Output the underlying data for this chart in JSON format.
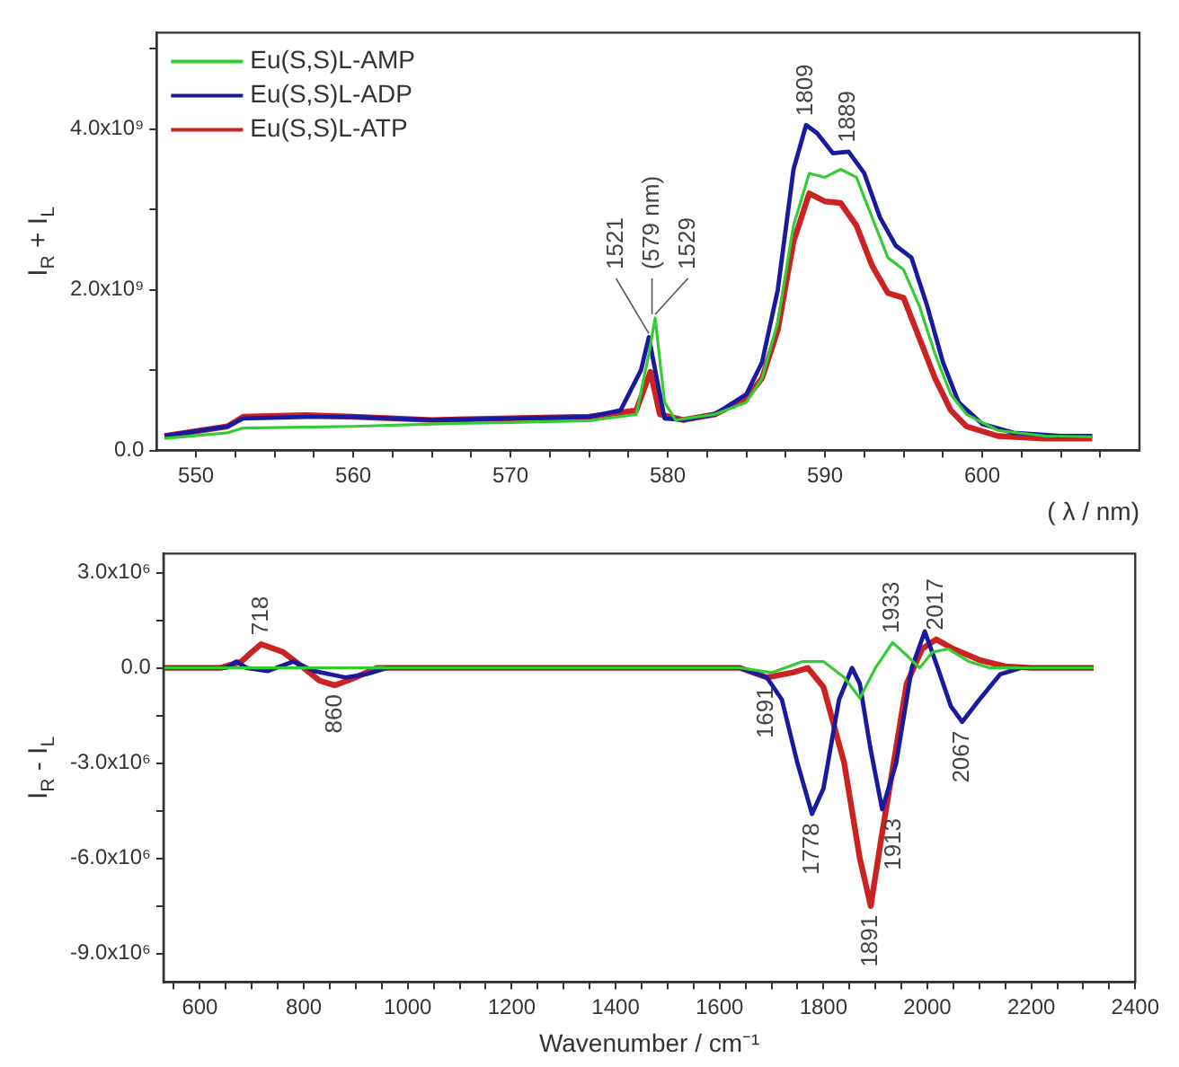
{
  "chart_data": [
    {
      "type": "line",
      "xlabel": "( λ / nm)",
      "ylabel": "I$_{R}$ + I$_{L}$",
      "legend": "top left",
      "grid": false,
      "xlim": [
        547.5,
        610
      ],
      "xticks": [
        550,
        {
          "value": 552.5,
          "label": null
        },
        {
          "value": 555,
          "label": null
        },
        {
          "value": 557.5,
          "label": null
        },
        560,
        {
          "value": 562.5,
          "label": null
        },
        {
          "value": 565,
          "label": null
        },
        {
          "value": 567.5,
          "label": null
        },
        570,
        {
          "value": 572.5,
          "label": null
        },
        {
          "value": 575,
          "label": null
        },
        {
          "value": 577.5,
          "label": null
        },
        580,
        {
          "value": 582.5,
          "label": null
        },
        {
          "value": 585,
          "label": null
        },
        {
          "value": 587.5,
          "label": null
        },
        590,
        {
          "value": 592.5,
          "label": null
        },
        {
          "value": 595,
          "label": null
        },
        {
          "value": 597.5,
          "label": null
        },
        600,
        {
          "value": 602.5,
          "label": null
        },
        {
          "value": 605,
          "label": null
        },
        {
          "value": 607.5,
          "label": null
        }
      ],
      "ylim": [
        0,
        5200000000
      ],
      "yticks": [
        {
          "value": 0,
          "label": "0.0"
        },
        {
          "value": 1000000000,
          "label": null
        },
        {
          "value": 2000000000,
          "label": "2.0x10⁹"
        },
        {
          "value": 3000000000,
          "label": null
        },
        {
          "value": 4000000000,
          "label": "4.0x10⁹"
        },
        {
          "value": 5000000000,
          "label": null
        }
      ],
      "series": [
        {
          "name": "Eu(S,S)L-AMP",
          "color": "#33cc33",
          "x": [
            548,
            552,
            553,
            560,
            565,
            570,
            575,
            578,
            578.8,
            579.2,
            579.8,
            580.5,
            583,
            585,
            586,
            587,
            588,
            589,
            590,
            591,
            592,
            593,
            594,
            595,
            596,
            597,
            598,
            599,
            601,
            604,
            607
          ],
          "values": [
            150000000,
            220000000,
            280000000,
            300000000,
            330000000,
            350000000,
            370000000,
            450000000,
            1200000000,
            1650000000,
            600000000,
            380000000,
            450000000,
            600000000,
            900000000,
            1600000000,
            2800000000,
            3450000000,
            3400000000,
            3500000000,
            3400000000,
            2900000000,
            2400000000,
            2250000000,
            1800000000,
            1200000000,
            700000000,
            450000000,
            250000000,
            180000000,
            170000000
          ]
        },
        {
          "name": "Eu(S,S)L-ADP",
          "color": "#1a1aa0",
          "x": [
            548,
            552,
            553,
            557,
            560,
            565,
            570,
            575,
            577,
            578.3,
            578.8,
            579.3,
            579.8,
            581,
            583,
            585,
            586,
            587,
            588,
            588.8,
            589.5,
            590.5,
            591.5,
            592.5,
            593.5,
            594.5,
            595.5,
            596.5,
            597.5,
            598.5,
            600,
            602,
            605,
            607
          ],
          "values": [
            180000000,
            300000000,
            400000000,
            420000000,
            420000000,
            380000000,
            400000000,
            420000000,
            500000000,
            1000000000,
            1410000000,
            900000000,
            400000000,
            380000000,
            450000000,
            700000000,
            1100000000,
            2000000000,
            3500000000,
            4050000000,
            3950000000,
            3700000000,
            3720000000,
            3450000000,
            2900000000,
            2550000000,
            2400000000,
            1800000000,
            1100000000,
            600000000,
            330000000,
            220000000,
            180000000,
            180000000
          ]
        },
        {
          "name": "Eu(S,S)L-ATP",
          "color": "#cc2222",
          "x": [
            548,
            552,
            553,
            557,
            560,
            565,
            570,
            575,
            578,
            578.9,
            579.5,
            581,
            583,
            584,
            585,
            586,
            587,
            588,
            589,
            590,
            591,
            592,
            593,
            594,
            595,
            596,
            597,
            598,
            599,
            601,
            604,
            607
          ],
          "values": [
            180000000,
            300000000,
            420000000,
            440000000,
            420000000,
            380000000,
            400000000,
            420000000,
            500000000,
            980000000,
            450000000,
            380000000,
            450000000,
            550000000,
            650000000,
            900000000,
            1500000000,
            2600000000,
            3200000000,
            3100000000,
            3080000000,
            2800000000,
            2300000000,
            1960000000,
            1900000000,
            1400000000,
            900000000,
            500000000,
            300000000,
            180000000,
            150000000,
            150000000
          ]
        }
      ],
      "annotations": [
        {
          "text": "1521",
          "x": 578.8,
          "y": 1410000000
        },
        {
          "text": "(579 nm)",
          "x": 579,
          "y": 1650000000
        },
        {
          "text": "1529",
          "x": 579.2,
          "y": 1650000000
        },
        {
          "text": "1809",
          "x": 588.8,
          "y": 4050000000
        },
        {
          "text": "1889",
          "x": 591.5,
          "y": 3720000000
        }
      ]
    },
    {
      "type": "line",
      "xlabel": "Wavenumber / cm⁻¹",
      "ylabel": "I$_{R}$ - I$_{L}$",
      "grid": false,
      "xlim": [
        530,
        2400
      ],
      "xticks": [
        {
          "value": 550,
          "label": null
        },
        600,
        {
          "value": 650,
          "label": null
        },
        {
          "value": 700,
          "label": null
        },
        {
          "value": 750,
          "label": null
        },
        800,
        {
          "value": 850,
          "label": null
        },
        {
          "value": 900,
          "label": null
        },
        {
          "value": 950,
          "label": null
        },
        1000,
        {
          "value": 1050,
          "label": null
        },
        {
          "value": 1100,
          "label": null
        },
        {
          "value": 1150,
          "label": null
        },
        1200,
        {
          "value": 1250,
          "label": null
        },
        {
          "value": 1300,
          "label": null
        },
        {
          "value": 1350,
          "label": null
        },
        1400,
        {
          "value": 1450,
          "label": null
        },
        {
          "value": 1500,
          "label": null
        },
        {
          "value": 1550,
          "label": null
        },
        1600,
        {
          "value": 1650,
          "label": null
        },
        {
          "value": 1700,
          "label": null
        },
        {
          "value": 1750,
          "label": null
        },
        1800,
        {
          "value": 1850,
          "label": null
        },
        {
          "value": 1900,
          "label": null
        },
        {
          "value": 1950,
          "label": null
        },
        2000,
        {
          "value": 2050,
          "label": null
        },
        {
          "value": 2100,
          "label": null
        },
        {
          "value": 2150,
          "label": null
        },
        2200,
        {
          "value": 2250,
          "label": null
        },
        {
          "value": 2300,
          "label": null
        },
        {
          "value": 2350,
          "label": null
        },
        2400
      ],
      "ylim": [
        -9900000,
        3600000
      ],
      "yticks": [
        {
          "value": -9000000,
          "label": "-9.0x10⁶"
        },
        {
          "value": -7500000,
          "label": null
        },
        {
          "value": -6000000,
          "label": "-6.0x10⁶"
        },
        {
          "value": -4500000,
          "label": null
        },
        {
          "value": -3000000,
          "label": "-3.0x10⁶"
        },
        {
          "value": -1500000,
          "label": null
        },
        {
          "value": 0,
          "label": "0.0"
        },
        {
          "value": 1500000,
          "label": null
        },
        {
          "value": 3000000,
          "label": "3.0x10⁶"
        }
      ],
      "series": [
        {
          "color": "#33cc33",
          "x": [
            530,
            1640,
            1700,
            1760,
            1800,
            1840,
            1870,
            1900,
            1933,
            1960,
            1985,
            2010,
            2040,
            2080,
            2120,
            2320
          ],
          "values": [
            0,
            0,
            -150000,
            200000,
            200000,
            -300000,
            -950000,
            0,
            800000,
            400000,
            0,
            500000,
            600000,
            200000,
            0,
            0
          ]
        },
        {
          "color": "#1a1aa0",
          "x": [
            530,
            650,
            670,
            690,
            730,
            780,
            820,
            880,
            920,
            960,
            1640,
            1691,
            1720,
            1750,
            1778,
            1800,
            1830,
            1855,
            1870,
            1890,
            1913,
            1940,
            1970,
            1995,
            2020,
            2045,
            2067,
            2100,
            2140,
            2180,
            2320
          ],
          "values": [
            0,
            0,
            200000,
            0,
            -100000,
            200000,
            -100000,
            -300000,
            -200000,
            0,
            0,
            -300000,
            -1000000,
            -3000000,
            -4600000,
            -3800000,
            -1000000,
            0,
            -500000,
            -2500000,
            -4450000,
            -3000000,
            0,
            1150000,
            0,
            -1200000,
            -1700000,
            -1000000,
            -200000,
            0,
            0
          ]
        },
        {
          "color": "#cc2222",
          "x": [
            530,
            640,
            680,
            700,
            718,
            760,
            800,
            830,
            860,
            900,
            940,
            1640,
            1691,
            1740,
            1770,
            1800,
            1840,
            1870,
            1891,
            1910,
            1930,
            1960,
            1990,
            2017,
            2050,
            2100,
            2150,
            2200,
            2320
          ],
          "values": [
            0,
            0,
            200000,
            500000,
            750000,
            500000,
            0,
            -400000,
            -550000,
            -300000,
            0,
            0,
            -300000,
            -150000,
            0,
            -600000,
            -3000000,
            -6000000,
            -7500000,
            -5500000,
            -3500000,
            -500000,
            600000,
            900000,
            600000,
            250000,
            50000,
            0,
            0
          ]
        }
      ],
      "annotations": [
        {
          "text": "718",
          "x": 718,
          "y": 750000
        },
        {
          "text": "860",
          "x": 860,
          "y": -550000
        },
        {
          "text": "1691",
          "x": 1691,
          "y": -300000
        },
        {
          "text": "1778",
          "x": 1778,
          "y": -4600000
        },
        {
          "text": "1891",
          "x": 1891,
          "y": -7500000
        },
        {
          "text": "1913",
          "x": 1935,
          "y": -4450000
        },
        {
          "text": "1933",
          "x": 1933,
          "y": 800000
        },
        {
          "text": "2017",
          "x": 2017,
          "y": 900000
        },
        {
          "text": "2067",
          "x": 2067,
          "y": -1700000
        }
      ]
    }
  ]
}
